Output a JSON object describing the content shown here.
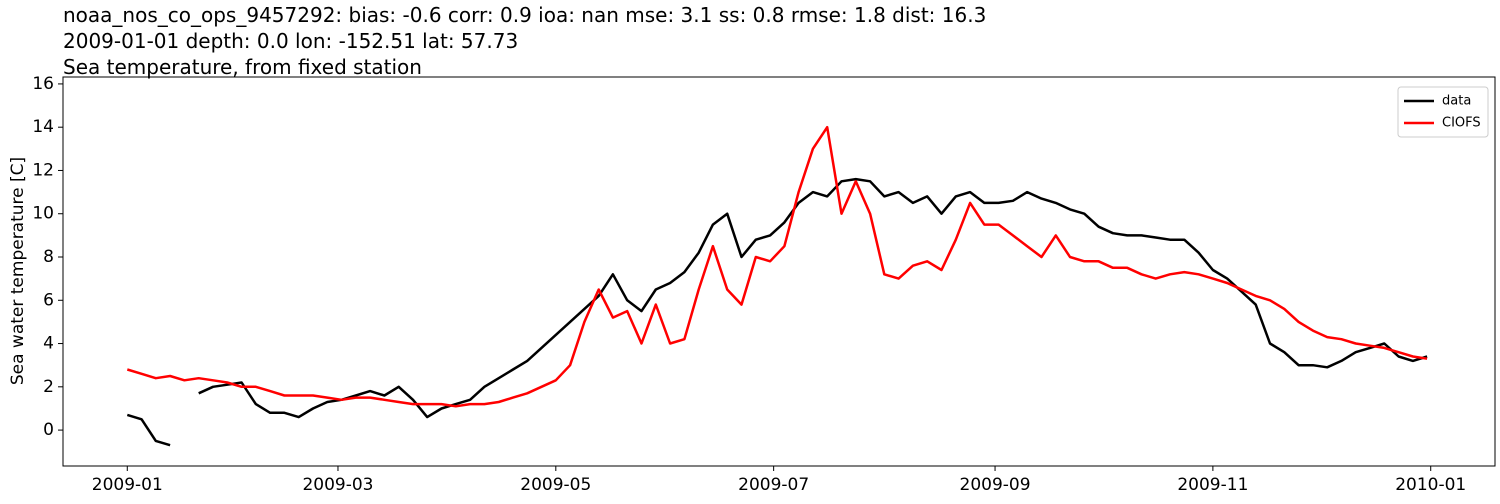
{
  "chart_data": {
    "type": "line",
    "title_lines": [
      "noaa_nos_co_ops_9457292: bias: -0.6  corr: 0.9  ioa: nan  mse: 3.1  ss: 0.8  rmse: 1.8  dist: 16.3",
      "2009-01-01 depth: 0.0 lon: -152.51 lat: 57.73",
      "Sea temperature, from fixed station"
    ],
    "y_label": "Sea water temperature [C]",
    "x": [
      0,
      4,
      8,
      12,
      16,
      20,
      24,
      28,
      32,
      36,
      40,
      44,
      48,
      52,
      56,
      60,
      64,
      68,
      72,
      76,
      80,
      84,
      88,
      92,
      96,
      100,
      104,
      108,
      112,
      116,
      120,
      124,
      128,
      132,
      136,
      140,
      144,
      148,
      152,
      156,
      160,
      164,
      168,
      172,
      176,
      180,
      184,
      188,
      192,
      196,
      200,
      204,
      208,
      212,
      216,
      220,
      224,
      228,
      232,
      236,
      240,
      244,
      248,
      252,
      256,
      260,
      264,
      268,
      272,
      276,
      280,
      284,
      288,
      292,
      296,
      300,
      304,
      308,
      312,
      316,
      320,
      324,
      328,
      332,
      336,
      340,
      344,
      348,
      352,
      356,
      360,
      364
    ],
    "series": [
      {
        "name": "data",
        "color": "#000000",
        "values": [
          0.7,
          0.5,
          -0.5,
          -0.7,
          null,
          1.7,
          2.0,
          2.1,
          2.2,
          1.2,
          0.8,
          0.8,
          0.6,
          1.0,
          1.3,
          1.4,
          1.6,
          1.8,
          1.6,
          2.0,
          1.4,
          0.6,
          1.0,
          1.2,
          1.4,
          2.0,
          2.4,
          2.8,
          3.2,
          3.8,
          4.4,
          5.0,
          5.6,
          6.2,
          7.2,
          6.0,
          5.5,
          6.5,
          6.8,
          7.3,
          8.2,
          9.5,
          10.0,
          8.0,
          8.8,
          9.0,
          9.6,
          10.5,
          11.0,
          10.8,
          11.5,
          11.6,
          11.5,
          10.8,
          11.0,
          10.5,
          10.8,
          10.0,
          10.8,
          11.0,
          10.5,
          10.5,
          10.6,
          11.0,
          10.7,
          10.5,
          10.2,
          10.0,
          9.4,
          9.1,
          9.0,
          9.0,
          8.9,
          8.8,
          8.8,
          8.2,
          7.4,
          7.0,
          6.4,
          5.8,
          4.0,
          3.6,
          3.0,
          3.0,
          2.9,
          3.2,
          3.6,
          3.8,
          4.0,
          3.4,
          3.2,
          3.4
        ]
      },
      {
        "name": "CIOFS",
        "color": "#ff0000",
        "values": [
          2.8,
          2.6,
          2.4,
          2.5,
          2.3,
          2.4,
          2.3,
          2.2,
          2.0,
          2.0,
          1.8,
          1.6,
          1.6,
          1.6,
          1.5,
          1.4,
          1.5,
          1.5,
          1.4,
          1.3,
          1.2,
          1.2,
          1.2,
          1.1,
          1.2,
          1.2,
          1.3,
          1.5,
          1.7,
          2.0,
          2.3,
          3.0,
          5.0,
          6.5,
          5.2,
          5.5,
          4.0,
          5.8,
          4.0,
          4.2,
          6.5,
          8.5,
          6.5,
          5.8,
          8.0,
          7.8,
          8.5,
          11.0,
          13.0,
          14.0,
          10.0,
          11.5,
          10.0,
          7.2,
          7.0,
          7.6,
          7.8,
          7.4,
          8.8,
          10.5,
          9.5,
          9.5,
          9.0,
          8.5,
          8.0,
          9.0,
          8.0,
          7.8,
          7.8,
          7.5,
          7.5,
          7.2,
          7.0,
          7.2,
          7.3,
          7.2,
          7.0,
          6.8,
          6.5,
          6.2,
          6.0,
          5.6,
          5.0,
          4.6,
          4.3,
          4.2,
          4.0,
          3.9,
          3.8,
          3.6,
          3.4,
          3.3
        ]
      }
    ],
    "xlim": [
      -18,
      383
    ],
    "xticks": [
      {
        "value": 0,
        "label": "2009-01"
      },
      {
        "value": 59,
        "label": "2009-03"
      },
      {
        "value": 120,
        "label": "2009-05"
      },
      {
        "value": 181,
        "label": "2009-07"
      },
      {
        "value": 243,
        "label": "2009-09"
      },
      {
        "value": 304,
        "label": "2009-11"
      },
      {
        "value": 365,
        "label": "2010-01"
      }
    ],
    "ylim": [
      -1.66,
      16.32
    ],
    "yticks": [
      0,
      2,
      4,
      6,
      8,
      10,
      12,
      14,
      16
    ],
    "legend": "upper right",
    "grid": false
  }
}
